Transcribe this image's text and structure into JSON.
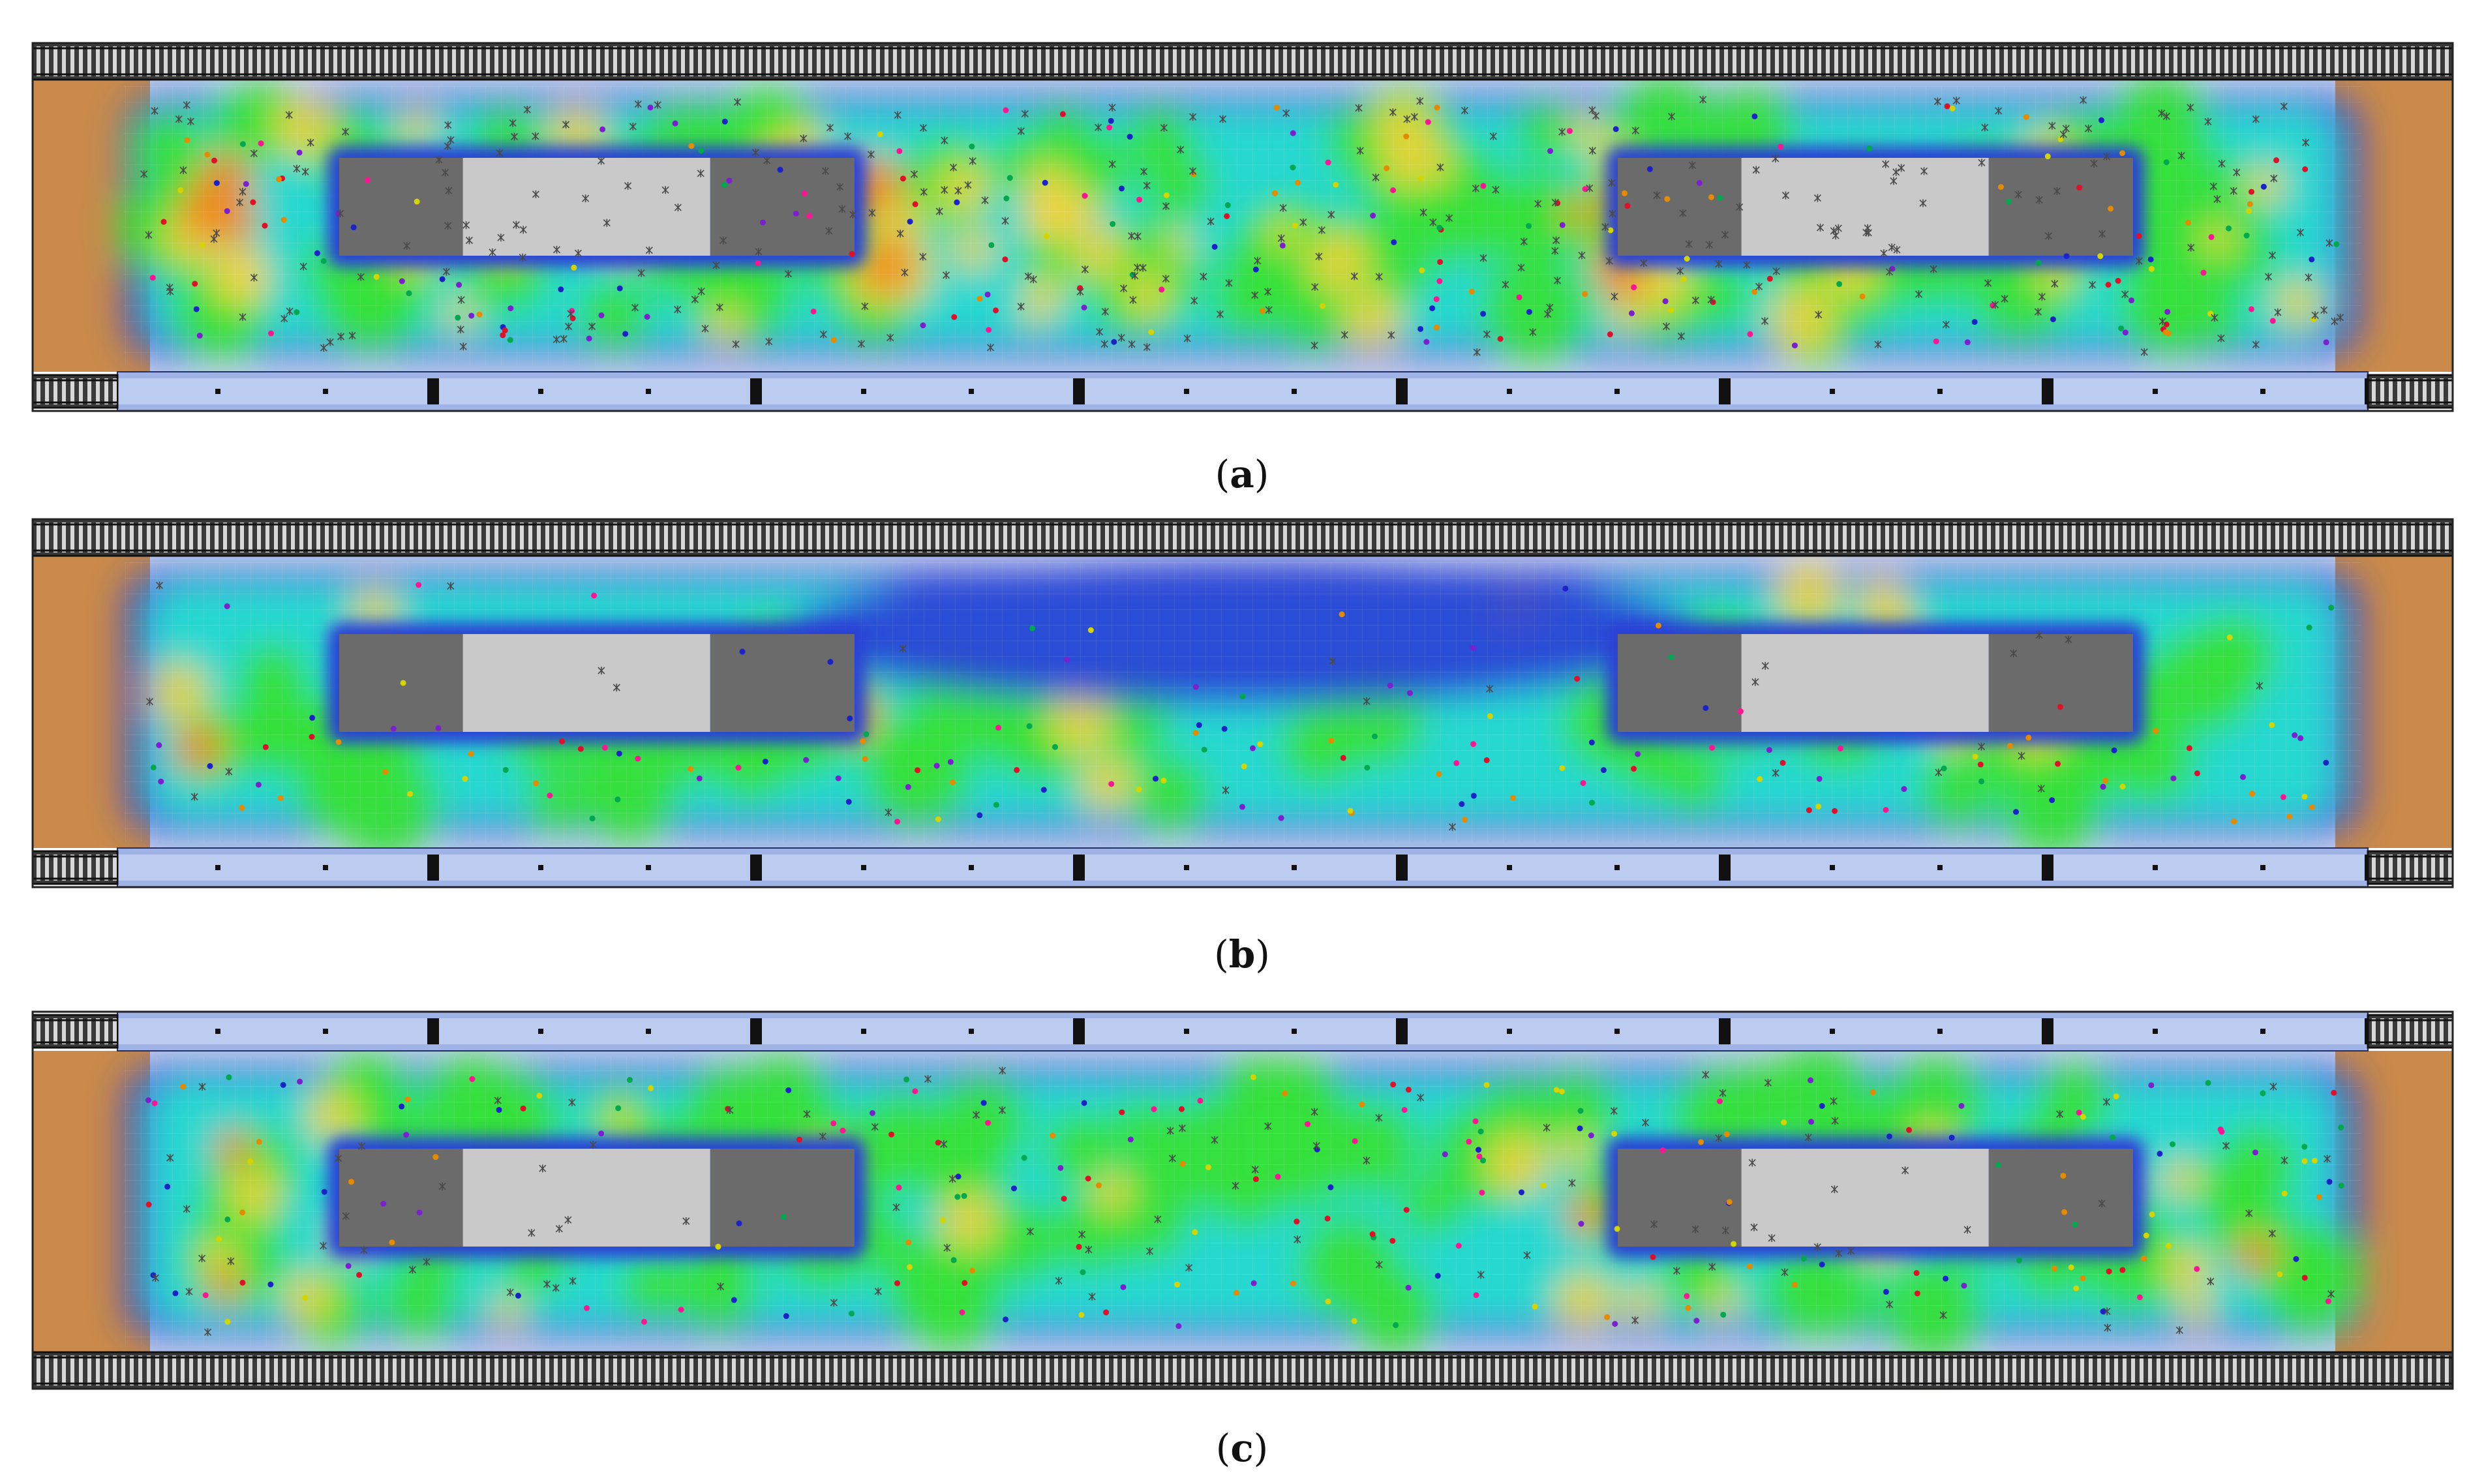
{
  "panels": [
    {
      "id": "a",
      "caption_letter": "a",
      "edge_track_side": "bottom",
      "density_level": "high",
      "palette": {
        "track": "#2c2c2c",
        "platform_edge": "#9fb3e6",
        "ramp": "#c98a4b",
        "escalator_dark": "#6b6b6b",
        "escalator_light": "#c9c9c9",
        "low": "#2a3fd6",
        "mid": "#27d8d0",
        "high": "#35e03a",
        "peak": "#f0d33c",
        "max": "#f28a1e"
      }
    },
    {
      "id": "b",
      "caption_letter": "b",
      "edge_track_side": "bottom",
      "density_level": "low",
      "palette": {
        "track": "#2c2c2c",
        "platform_edge": "#9fb3e6",
        "ramp": "#c98a4b",
        "escalator_dark": "#6b6b6b",
        "escalator_light": "#c9c9c9",
        "low": "#2a3fd6",
        "mid": "#27d8d0",
        "high": "#35e03a",
        "peak": "#f0d33c",
        "max": "#f28a1e"
      }
    },
    {
      "id": "c",
      "caption_letter": "c",
      "edge_track_side": "top",
      "density_level": "medium",
      "palette": {
        "track": "#2c2c2c",
        "platform_edge": "#9fb3e6",
        "ramp": "#c98a4b",
        "escalator_dark": "#6b6b6b",
        "escalator_light": "#c9c9c9",
        "low": "#2a3fd6",
        "mid": "#27d8d0",
        "high": "#35e03a",
        "peak": "#f0d33c",
        "max": "#f28a1e"
      }
    }
  ]
}
